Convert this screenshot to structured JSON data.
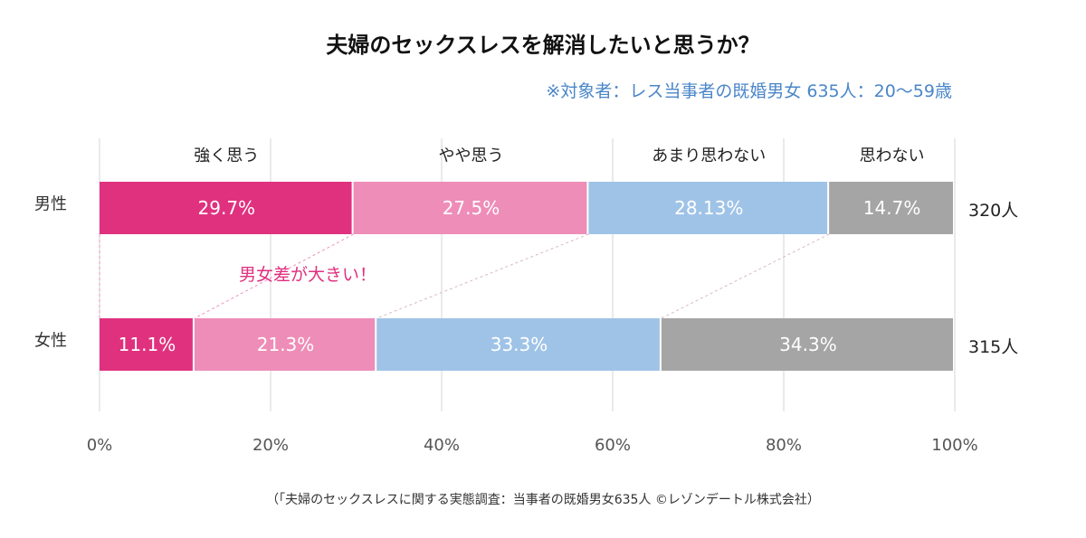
{
  "chart_data": {
    "type": "bar",
    "orientation": "horizontal",
    "stacked": "percent",
    "title": "夫婦のセックスレスを解消したいと思うか？",
    "subtitle": "※対象者：レス当事者の既婚男女 635人：20〜59歳",
    "categories": [
      "男性",
      "女性"
    ],
    "totals": [
      "320人",
      "315人"
    ],
    "series": [
      {
        "name": "強く思う",
        "values": [
          29.7,
          11.1
        ],
        "labels": [
          "29.7%",
          "11.1%"
        ],
        "color": "#e0317f"
      },
      {
        "name": "やや思う",
        "values": [
          27.5,
          21.3
        ],
        "labels": [
          "27.5%",
          "21.3%"
        ],
        "color": "#ee8db8"
      },
      {
        "name": "あまり思わない",
        "values": [
          28.13,
          33.3
        ],
        "labels": [
          "28.13%",
          "33.3%"
        ],
        "color": "#9fc3e7"
      },
      {
        "name": "思わない",
        "values": [
          14.7,
          34.3
        ],
        "labels": [
          "14.7%",
          "34.3%"
        ],
        "color": "#a5a5a5"
      }
    ],
    "xlim": [
      0,
      100
    ],
    "xticks": [
      "0%",
      "20%",
      "40%",
      "60%",
      "80%",
      "100%"
    ],
    "grid": true,
    "annotation": "男女差が大きい！",
    "source": "（「夫婦のセックスレスに関する実態調査：当事者の既婚男女635人 ©レゾンデートル株式会社）"
  }
}
